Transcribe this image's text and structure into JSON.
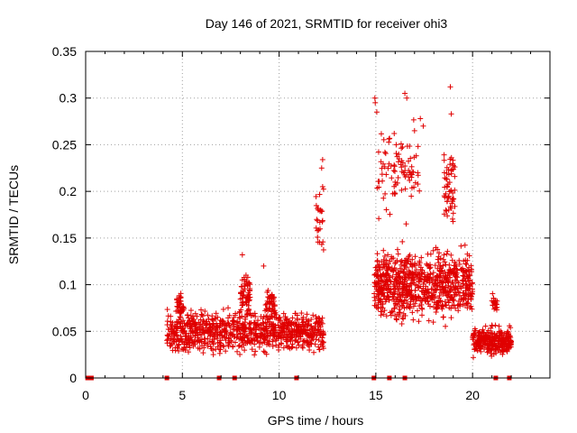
{
  "chart_data": {
    "type": "scatter",
    "title": "Day 146 of 2021, SRMTID for receiver ohi3",
    "xlabel": "GPS time / hours",
    "ylabel": "SRMTID / TECUs",
    "xlim": [
      0,
      24
    ],
    "ylim": [
      0,
      0.35
    ],
    "x_ticks": [
      0,
      5,
      10,
      15,
      20
    ],
    "x_tick_labels": [
      "0",
      "5",
      "10",
      "15",
      "20"
    ],
    "y_ticks": [
      0,
      0.05,
      0.1,
      0.15,
      0.2,
      0.25,
      0.3,
      0.35
    ],
    "y_tick_labels": [
      "0",
      "0.05",
      "0.1",
      "0.15",
      "0.2",
      "0.25",
      "0.3",
      "0.35"
    ],
    "grid": true,
    "marker": "+",
    "color": "#e00000",
    "zero_markers_x": [
      0.1,
      0.3,
      4.2,
      6.9,
      7.7,
      10.9,
      14.9,
      15.7,
      16.5,
      21.2,
      21.9
    ],
    "series": [
      {
        "name": "SRMTID",
        "clusters": [
          {
            "x_range": [
              4.2,
              12.3
            ],
            "y_center": 0.05,
            "y_spread": 0.03,
            "count": 900
          },
          {
            "x_range": [
              4.7,
              5.1
            ],
            "y_center": 0.075,
            "y_spread": 0.02,
            "count": 40
          },
          {
            "x_range": [
              8.0,
              8.5
            ],
            "y_center": 0.09,
            "y_spread": 0.03,
            "count": 60
          },
          {
            "x_range": [
              9.3,
              9.8
            ],
            "y_center": 0.08,
            "y_spread": 0.025,
            "count": 50
          },
          {
            "x_range": [
              11.9,
              12.3
            ],
            "y_center": 0.17,
            "y_spread": 0.04,
            "count": 25
          },
          {
            "x_range": [
              14.9,
              20.0
            ],
            "y_center": 0.1,
            "y_spread": 0.05,
            "count": 800
          },
          {
            "x_range": [
              15.0,
              17.3
            ],
            "y_center": 0.22,
            "y_spread": 0.06,
            "count": 90
          },
          {
            "x_range": [
              18.5,
              19.1
            ],
            "y_center": 0.2,
            "y_spread": 0.06,
            "count": 60
          },
          {
            "x_range": [
              20.0,
              22.0
            ],
            "y_center": 0.04,
            "y_spread": 0.02,
            "count": 300
          },
          {
            "x_range": [
              21.0,
              21.3
            ],
            "y_center": 0.08,
            "y_spread": 0.02,
            "count": 20
          }
        ],
        "outliers": [
          {
            "x": 14.95,
            "y": 0.3
          },
          {
            "x": 14.97,
            "y": 0.295
          },
          {
            "x": 15.05,
            "y": 0.285
          },
          {
            "x": 16.5,
            "y": 0.305
          },
          {
            "x": 16.6,
            "y": 0.3
          },
          {
            "x": 18.85,
            "y": 0.312
          },
          {
            "x": 18.9,
            "y": 0.283
          },
          {
            "x": 17.3,
            "y": 0.278
          },
          {
            "x": 17.45,
            "y": 0.27
          },
          {
            "x": 17.0,
            "y": 0.265
          },
          {
            "x": 15.95,
            "y": 0.262
          },
          {
            "x": 16.05,
            "y": 0.25
          },
          {
            "x": 12.25,
            "y": 0.234
          },
          {
            "x": 12.2,
            "y": 0.225
          },
          {
            "x": 12.25,
            "y": 0.205
          },
          {
            "x": 12.15,
            "y": 0.18
          },
          {
            "x": 8.1,
            "y": 0.132
          },
          {
            "x": 9.2,
            "y": 0.12
          }
        ]
      }
    ]
  }
}
